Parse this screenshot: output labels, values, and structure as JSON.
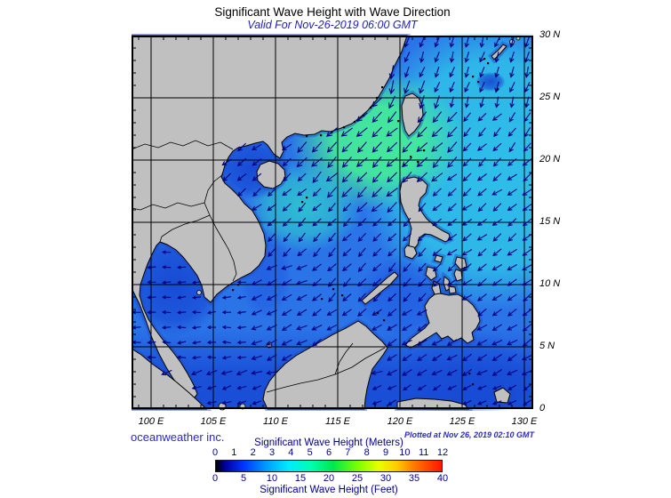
{
  "title": "Significant Wave Height with Wave Direction",
  "subtitle": "Valid For Nov-26-2019 06:00 GMT",
  "credit": "oceanweather inc.",
  "plotted": "Plotted at Nov 26, 2019 02:10 GMT",
  "axes": {
    "lon_labels": [
      "100 E",
      "105 E",
      "110 E",
      "115 E",
      "120 E",
      "125 E",
      "130 E"
    ],
    "lat_labels": [
      "30 N",
      "25 N",
      "20 N",
      "15 N",
      "10 N",
      "5 N",
      "0"
    ]
  },
  "legend": {
    "meters_title": "Significant Wave Height (Meters)",
    "feet_title": "Significant Wave Height (Feet)",
    "meters_ticks": [
      "0",
      "1",
      "2",
      "3",
      "4",
      "5",
      "6",
      "7",
      "8",
      "9",
      "10",
      "11",
      "12"
    ],
    "feet_ticks": [
      "0",
      "5",
      "10",
      "15",
      "20",
      "25",
      "30",
      "35",
      "40"
    ],
    "colorbar_stops": [
      "#000000 0%",
      "#000099 4%",
      "#0033ff 12%",
      "#0099ff 22%",
      "#00eaff 32%",
      "#00ffb0 42%",
      "#00e84d 52%",
      "#7dff00 63%",
      "#e8ff00 72%",
      "#ffcc00 80%",
      "#ff7700 88%",
      "#ff1500 100%"
    ]
  },
  "colors": {
    "land": "#c0c0c0",
    "coastline": "#000000",
    "coastal_rim": "#1c4ecf",
    "ocean_base": "#2b74e8",
    "ocean_green": "#44e79c",
    "ocean_teal": "#2dd9c7",
    "ocean_cyan": "#2ec2e8",
    "ocean_tongue": "#2fd2cc",
    "ocean_dark": "#1546d2",
    "ocean_dark2": "#1d55de",
    "arrow": "#000080",
    "grid": "#000000",
    "text_blue": "#2a2ac2",
    "legend_navy": "#000099"
  },
  "map_data": {
    "type": "geographic field map",
    "region": "South China Sea / Philippine Sea",
    "extent": {
      "lon_deg_e": [
        98.4,
        130.7
      ],
      "lat_deg_n": [
        0,
        30
      ]
    },
    "grid_interval_deg": 5,
    "field": "significant wave height (m), jet colorbar 0-12 m (0-40 ft), with wave-direction arrows",
    "reading": "peak ~4-6 m (green) northeast of the South China Sea near Taiwan/Luzon Strait; ~2-3 m (cyan) in the Philippine Sea; ~1-2 m (dark blue) in Gulf of Tonkin, Gulf of Thailand and southern seas; arrows point predominantly south-westward"
  }
}
